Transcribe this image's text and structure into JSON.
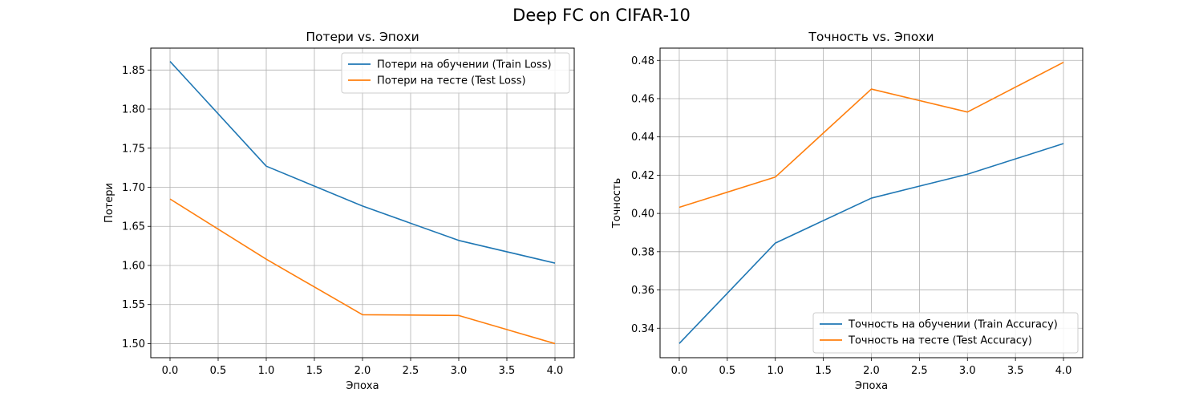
{
  "figure": {
    "suptitle": "Deep FC on CIFAR-10"
  },
  "colors": {
    "train": "#1f77b4",
    "test": "#ff7f0e",
    "grid": "#b0b0b0",
    "axes": "#000000"
  },
  "chart_data": [
    {
      "type": "line",
      "title": "Потери vs. Эпохи",
      "xlabel": "Эпоха",
      "ylabel": "Потери",
      "xlim": [
        -0.2,
        4.2
      ],
      "ylim": [
        1.482,
        1.878
      ],
      "xticks": [
        0.0,
        0.5,
        1.0,
        1.5,
        2.0,
        2.5,
        3.0,
        3.5,
        4.0
      ],
      "xtick_labels": [
        "0.0",
        "0.5",
        "1.0",
        "1.5",
        "2.0",
        "2.5",
        "3.0",
        "3.5",
        "4.0"
      ],
      "yticks": [
        1.5,
        1.55,
        1.6,
        1.65,
        1.7,
        1.75,
        1.8,
        1.85
      ],
      "ytick_labels": [
        "1.50",
        "1.55",
        "1.60",
        "1.65",
        "1.70",
        "1.75",
        "1.80",
        "1.85"
      ],
      "grid": true,
      "legend_position": "top-right",
      "x": [
        0,
        1,
        2,
        3,
        4
      ],
      "series": [
        {
          "name": "Потери на обучении (Train Loss)",
          "color_key": "train",
          "values": [
            1.861,
            1.727,
            1.676,
            1.632,
            1.603
          ]
        },
        {
          "name": "Потери на тесте (Test Loss)",
          "color_key": "test",
          "values": [
            1.685,
            1.608,
            1.537,
            1.536,
            1.5
          ]
        }
      ]
    },
    {
      "type": "line",
      "title": "Точность vs. Эпохи",
      "xlabel": "Эпоха",
      "ylabel": "Точность",
      "xlim": [
        -0.2,
        4.2
      ],
      "ylim": [
        0.3246,
        0.4864
      ],
      "xticks": [
        0.0,
        0.5,
        1.0,
        1.5,
        2.0,
        2.5,
        3.0,
        3.5,
        4.0
      ],
      "xtick_labels": [
        "0.0",
        "0.5",
        "1.0",
        "1.5",
        "2.0",
        "2.5",
        "3.0",
        "3.5",
        "4.0"
      ],
      "yticks": [
        0.34,
        0.36,
        0.38,
        0.4,
        0.42,
        0.44,
        0.46,
        0.48
      ],
      "ytick_labels": [
        "0.34",
        "0.36",
        "0.38",
        "0.40",
        "0.42",
        "0.44",
        "0.46",
        "0.48"
      ],
      "grid": true,
      "legend_position": "bottom-right",
      "x": [
        0,
        1,
        2,
        3,
        4
      ],
      "series": [
        {
          "name": "Точность на обучении (Train Accuracy)",
          "color_key": "train",
          "values": [
            0.332,
            0.3845,
            0.408,
            0.4205,
            0.4365
          ]
        },
        {
          "name": "Точность на тесте (Test Accuracy)",
          "color_key": "test",
          "values": [
            0.4032,
            0.419,
            0.465,
            0.453,
            0.479
          ]
        }
      ]
    }
  ]
}
